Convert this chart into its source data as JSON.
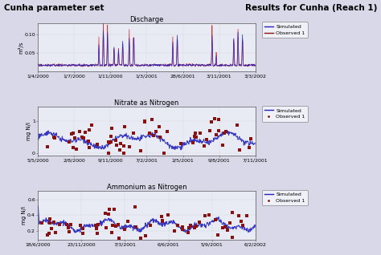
{
  "title_left": "Cunha parameter set",
  "title_right": "Results for Cunha (Reach 1)",
  "fig_bg_color": "#d8d8e8",
  "plot_bg_color": "#e8eaf4",
  "panel1": {
    "title": "Discharge",
    "ylabel": "m³/s",
    "yticks": [
      0.05,
      0.1
    ],
    "ylim": [
      0,
      0.13
    ],
    "xtick_labels": [
      "1/4/2000",
      "1/7/2000",
      "1/11/2000",
      "1/3/2001",
      "28/6/2001",
      "3/11/2001",
      "3/3/2002"
    ],
    "grid_color": "#aabbaa",
    "sim_color": "#2222bb",
    "obs_color": "#cc2222",
    "sim_lw": 0.5,
    "obs_lw": 0.5
  },
  "panel2": {
    "title": "Nitrate as Nitrogen",
    "ylabel": "mg N/l",
    "yticks": [
      0,
      1.0
    ],
    "ylim": [
      -0.08,
      1.45
    ],
    "xtick_labels": [
      "5/5/2000",
      "2/8/2000",
      "9/11/2000",
      "7/2/2001",
      "2/5/2001",
      "9/8/2001",
      "7/11/2001"
    ],
    "grid_color": "#aabbaa",
    "sim_color": "#2222bb",
    "obs_color": "#881111",
    "sim_lw": 0.7
  },
  "panel3": {
    "title": "Ammonium as Nitrogen",
    "ylabel": "mg N/l",
    "yticks": [
      0.2,
      0.4,
      0.6
    ],
    "ylim": [
      0.08,
      0.72
    ],
    "xtick_labels": [
      "18/6/2000",
      "23/11/2000",
      "7/3/2001",
      "6/6/2001",
      "5/9/2001",
      "6/2/2002"
    ],
    "grid_color": "#aabbaa",
    "sim_color": "#2222bb",
    "obs_color": "#881111",
    "sim_lw": 0.7
  },
  "legend_sim_color": "#2222bb",
  "legend_obs_color": "#881111",
  "font_size_title": 6,
  "font_size_axis": 5,
  "font_size_tick": 4.5,
  "font_size_header": 7.5
}
